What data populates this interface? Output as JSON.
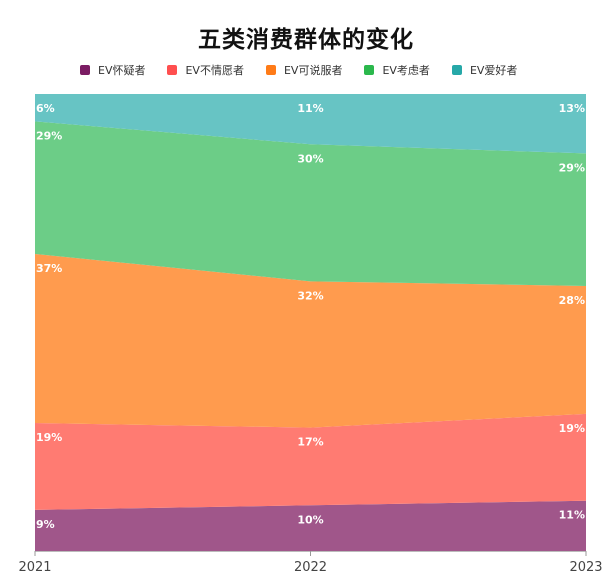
{
  "chart_data": {
    "type": "area",
    "title": "五类消费群体的变化",
    "x": [
      "2021",
      "2022",
      "2023"
    ],
    "ylim": [
      0,
      100
    ],
    "stacked_percent": true,
    "legend_position": "top",
    "series": [
      {
        "name": "EV怀疑者",
        "color": "#a0568a",
        "legend_color": "#7b1c63",
        "values": [
          9,
          10,
          11
        ]
      },
      {
        "name": "EV不情愿者",
        "color": "#ff7b72",
        "legend_color": "#ff4f4f",
        "values": [
          19,
          17,
          19
        ]
      },
      {
        "name": "EV可说服者",
        "color": "#ff9b4e",
        "legend_color": "#ff7b17",
        "values": [
          37,
          32,
          28
        ]
      },
      {
        "name": "EV考虑者",
        "color": "#6ccd87",
        "legend_color": "#2bb84c",
        "values": [
          29,
          30,
          29
        ]
      },
      {
        "name": "EV爱好者",
        "color": "#67c4c4",
        "legend_color": "#26a8a8",
        "values": [
          6,
          11,
          13
        ]
      }
    ],
    "data_labels": [
      [
        "9%",
        "10%",
        "11%"
      ],
      [
        "19%",
        "17%",
        "19%"
      ],
      [
        "37%",
        "32%",
        "28%"
      ],
      [
        "29%",
        "30%",
        "29%"
      ],
      [
        "6%",
        "11%",
        "13%"
      ]
    ]
  }
}
